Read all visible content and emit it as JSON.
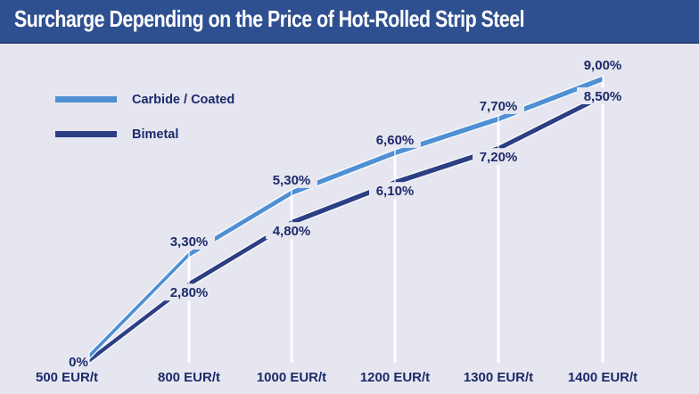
{
  "chart_data": {
    "type": "line",
    "title": "Surcharge Depending on the Price of Hot-Rolled Strip Steel",
    "categories": [
      "500 EUR/t",
      "800 EUR/t",
      "1000 EUR/t",
      "1200 EUR/t",
      "1300 EUR/t",
      "1400 EUR/t"
    ],
    "series": [
      {
        "name": "Carbide / Coated",
        "color": "#4f90d4",
        "values": [
          0,
          3.3,
          5.3,
          6.6,
          7.7,
          9.0
        ],
        "labels": [
          "0%",
          "3,30%",
          "5,30%",
          "6,60%",
          "7,70%",
          "9,00%"
        ]
      },
      {
        "name": "Bimetal",
        "color": "#2c3f85",
        "values": [
          0,
          2.8,
          4.8,
          6.1,
          7.2,
          8.5
        ],
        "labels": [
          "",
          "2,80%",
          "4,80%",
          "6,10%",
          "7,20%",
          "8,50%"
        ]
      }
    ],
    "xlabel": "",
    "ylabel": "",
    "ylim": [
      0,
      9
    ],
    "grid": false,
    "legend": "top-left"
  }
}
